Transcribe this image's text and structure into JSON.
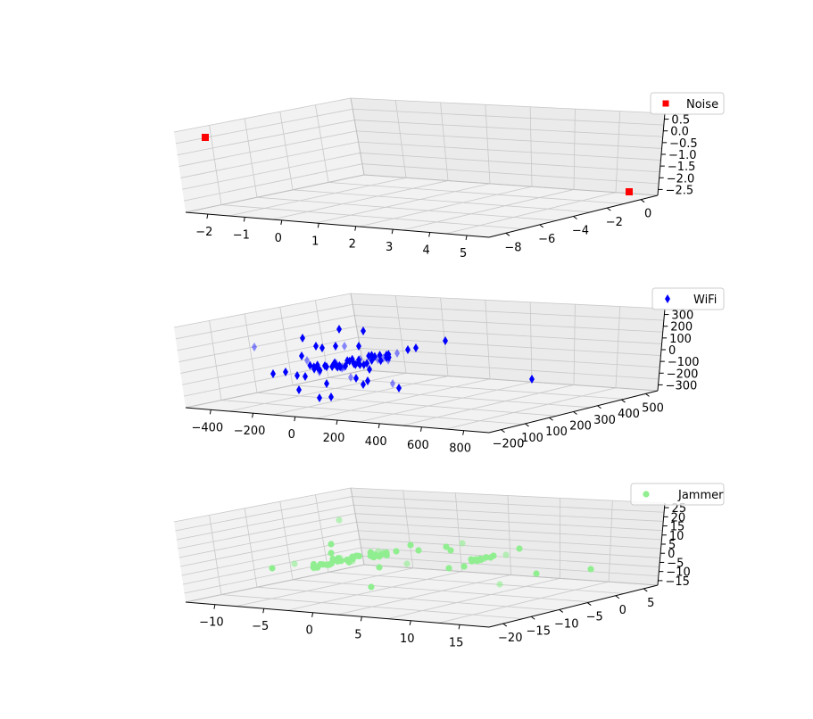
{
  "chart_data": [
    {
      "type": "scatter",
      "projection": "3d",
      "legend": {
        "position": "top-right",
        "label": "Noise"
      },
      "marker": "square",
      "color": "#ff0000",
      "x_ticks": [
        "−2",
        "−1",
        "0",
        "1",
        "2",
        "3",
        "4",
        "5"
      ],
      "y_ticks": [
        "−8",
        "−6",
        "−4",
        "−2",
        "0"
      ],
      "z_ticks": [
        "0.5",
        "0.0",
        "−0.5",
        "−1.0",
        "−1.5",
        "−2.0",
        "−2.5"
      ],
      "series": [
        {
          "name": "Noise",
          "points": [
            [
              -2.6,
              -9.2,
              0.4
            ],
            [
              5.4,
              -0.6,
              -2.8
            ]
          ]
        }
      ]
    },
    {
      "type": "scatter",
      "projection": "3d",
      "legend": {
        "position": "top-right",
        "label": "WiFi"
      },
      "marker": "thin_diamond",
      "color": "#0000ff",
      "x_ticks": [
        "−400",
        "−200",
        "0",
        "200",
        "400",
        "600",
        "800"
      ],
      "y_ticks": [
        "−200",
        "100",
        "100",
        "200",
        "300",
        "400",
        "500"
      ],
      "z_ticks": [
        "300",
        "200",
        "100",
        "0",
        "−100",
        "−200",
        "−300"
      ],
      "series": [
        {
          "name": "WiFi",
          "points": []
        }
      ]
    },
    {
      "type": "scatter",
      "projection": "3d",
      "legend": {
        "position": "top-right",
        "label": "Jammer"
      },
      "marker": "circle",
      "color": "#90ee90",
      "x_ticks": [
        "−10",
        "−5",
        "0",
        "5",
        "10",
        "15"
      ],
      "y_ticks": [
        "−20",
        "−15",
        "−10",
        "−5",
        "0",
        "5"
      ],
      "z_ticks": [
        "25",
        "20",
        "15",
        "10",
        "5",
        "0",
        "−5",
        "−10",
        "−15"
      ],
      "series": [
        {
          "name": "Jammer",
          "points": []
        }
      ]
    }
  ]
}
